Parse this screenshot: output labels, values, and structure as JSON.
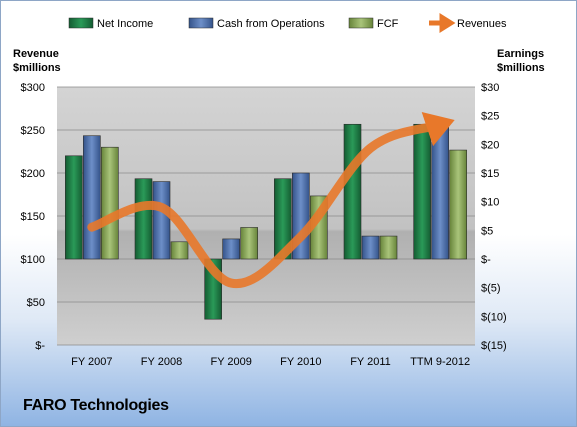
{
  "company_label": "FARO Technologies",
  "chart_data": {
    "type": "bar",
    "categories": [
      "FY 2007",
      "FY 2008",
      "FY 2009",
      "FY 2010",
      "FY 2011",
      "TTM 9-2012"
    ],
    "series": [
      {
        "name": "Net Income",
        "axis": "right",
        "color": "#1e7d46",
        "values": [
          18,
          14,
          -10.5,
          14,
          23.5,
          23.5
        ]
      },
      {
        "name": "Cash from Operations",
        "axis": "right",
        "color": "#4a6fae",
        "values": [
          21.5,
          13.5,
          3.5,
          15,
          4,
          23.5
        ]
      },
      {
        "name": "FCF",
        "axis": "right",
        "color": "#8aaa55",
        "values": [
          19.5,
          3,
          5.5,
          11,
          4,
          19
        ]
      },
      {
        "name": "Revenues",
        "type": "line",
        "axis": "left",
        "color": "#e8782a",
        "values": [
          137,
          160,
          72,
          126,
          229,
          256
        ]
      }
    ],
    "left_axis": {
      "title": [
        "Revenue",
        "$millions"
      ],
      "range": [
        0,
        300
      ],
      "ticks": [
        0,
        50,
        100,
        150,
        200,
        250,
        300
      ],
      "tick_labels": [
        "$-",
        "$50",
        "$100",
        "$150",
        "$200",
        "$250",
        "$300"
      ]
    },
    "right_axis": {
      "title": [
        "Earnings",
        "$millions"
      ],
      "range": [
        -15,
        30
      ],
      "ticks": [
        -15,
        -10,
        -5,
        0,
        5,
        10,
        15,
        20,
        25,
        30
      ],
      "tick_labels": [
        "$(15)",
        "$(10)",
        "$(5)",
        "$-",
        "$5",
        "$10",
        "$15",
        "$20",
        "$25",
        "$30"
      ]
    },
    "grid": true,
    "legend_position": "top"
  }
}
